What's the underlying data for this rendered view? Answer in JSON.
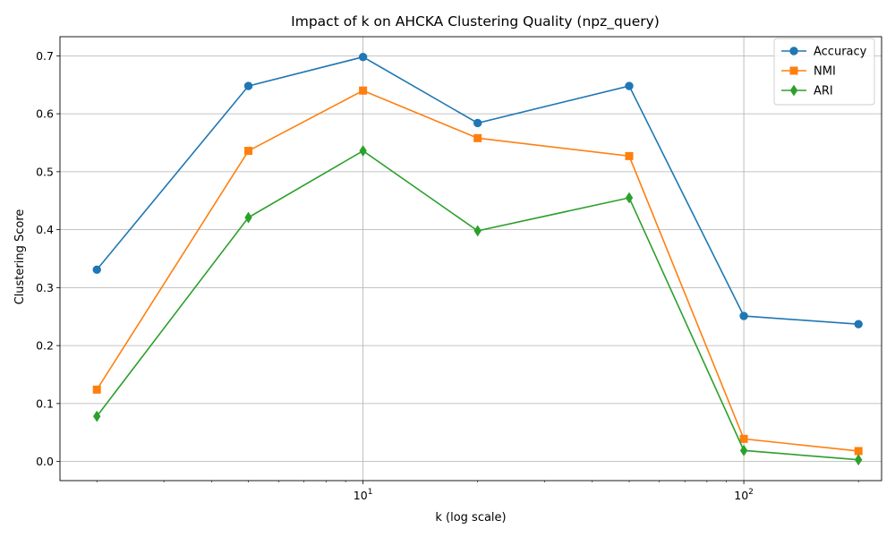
{
  "chart_data": {
    "type": "line",
    "title": "Impact of k on AHCKA Clustering Quality (npz_query)",
    "xlabel": "k (log scale)",
    "ylabel": "Clustering Score",
    "x_scale": "log",
    "x": [
      2,
      5,
      10,
      20,
      50,
      100,
      200
    ],
    "xlim": [
      1.6,
      230
    ],
    "ylim": [
      -0.033,
      0.733
    ],
    "x_ticks": [
      {
        "value": 10,
        "base": "10",
        "exp": "1"
      },
      {
        "value": 100,
        "base": "10",
        "exp": "2"
      }
    ],
    "y_ticks": [
      "0.0",
      "0.1",
      "0.2",
      "0.3",
      "0.4",
      "0.5",
      "0.6",
      "0.7"
    ],
    "grid": true,
    "legend_position": "top-right",
    "series": [
      {
        "name": "Accuracy",
        "color": "#1f77b4",
        "marker": "circle",
        "values": [
          0.331,
          0.648,
          0.698,
          0.584,
          0.648,
          0.251,
          0.237
        ]
      },
      {
        "name": "NMI",
        "color": "#ff7f0e",
        "marker": "square",
        "values": [
          0.124,
          0.536,
          0.64,
          0.558,
          0.527,
          0.039,
          0.018
        ]
      },
      {
        "name": "ARI",
        "color": "#2ca02c",
        "marker": "diamond",
        "values": [
          0.078,
          0.421,
          0.536,
          0.398,
          0.455,
          0.019,
          0.003
        ]
      }
    ]
  }
}
